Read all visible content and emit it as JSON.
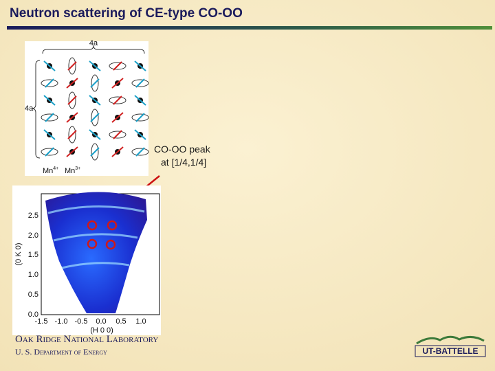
{
  "header": {
    "title": "Neutron scattering of CE-type CO-OO"
  },
  "lattice": {
    "top_label": "4a",
    "side_label": "4a",
    "legend": [
      {
        "base": "Mn",
        "sup": "4+"
      },
      {
        "base": "Mn",
        "sup": "3+"
      }
    ]
  },
  "annotation": {
    "lines": [
      "CO-OO peak",
      "at [1/4,1/4]"
    ]
  },
  "map": {
    "y_label": "(0 K 0)",
    "x_label": "(H 0 0)",
    "y_ticks": [
      "2.5",
      "2.0",
      "1.5",
      "1.0",
      "0.5",
      "0.0"
    ],
    "x_ticks": [
      "-1.5",
      "-1.0",
      "-0.5",
      "0.0",
      "0.5",
      "1.0"
    ]
  },
  "footer": {
    "lab": "Oak Ridge National Laboratory",
    "department": "U. S. Department of Energy",
    "logo": "UT-BATTELLE"
  }
}
